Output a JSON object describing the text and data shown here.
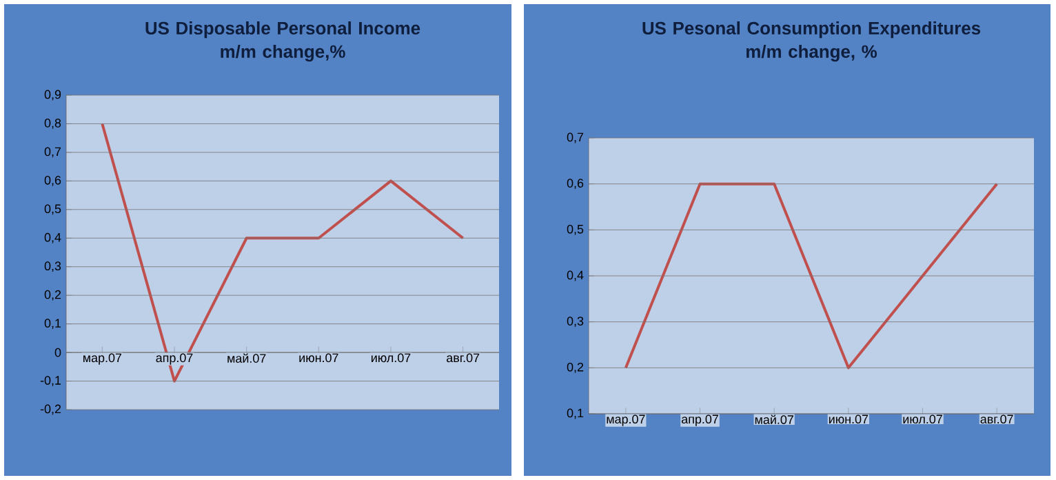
{
  "chart_data": [
    {
      "type": "line",
      "title": "US Disposable Personal Income",
      "subtitle": "m/m change,%",
      "categories": [
        "мар.07",
        "апр.07",
        "май.07",
        "июн.07",
        "июл.07",
        "авг.07"
      ],
      "values": [
        0.8,
        -0.1,
        0.4,
        0.4,
        0.6,
        0.4
      ],
      "color": "#c0504d",
      "ylim": [
        -0.2,
        0.9
      ],
      "yticks": [
        {
          "value": -0.2,
          "label": "-0,2"
        },
        {
          "value": -0.1,
          "label": "-0,1"
        },
        {
          "value": 0,
          "label": "0"
        },
        {
          "value": 0.1,
          "label": "0,1"
        },
        {
          "value": 0.2,
          "label": "0,2"
        },
        {
          "value": 0.3,
          "label": "0,3"
        },
        {
          "value": 0.4,
          "label": "0,4"
        },
        {
          "value": 0.5,
          "label": "0,5"
        },
        {
          "value": 0.6,
          "label": "0,6"
        },
        {
          "value": 0.7,
          "label": "0,7"
        },
        {
          "value": 0.8,
          "label": "0,8"
        },
        {
          "value": 0.9,
          "label": "0,9"
        }
      ],
      "grid": "y"
    },
    {
      "type": "line",
      "title": "US Pesonal Consumption Expenditures",
      "subtitle": "m/m change, %",
      "categories": [
        "мар.07",
        "апр.07",
        "май.07",
        "июн.07",
        "июл.07",
        "авг.07"
      ],
      "values": [
        0.2,
        0.6,
        0.6,
        0.2,
        0.4,
        0.6
      ],
      "color": "#c0504d",
      "ylim": [
        0.1,
        0.7
      ],
      "yticks": [
        {
          "value": 0.1,
          "label": "0,1"
        },
        {
          "value": 0.2,
          "label": "0,2"
        },
        {
          "value": 0.3,
          "label": "0,3"
        },
        {
          "value": 0.4,
          "label": "0,4"
        },
        {
          "value": 0.5,
          "label": "0,5"
        },
        {
          "value": 0.6,
          "label": "0,6"
        },
        {
          "value": 0.7,
          "label": "0,7"
        }
      ],
      "grid": "y"
    }
  ]
}
